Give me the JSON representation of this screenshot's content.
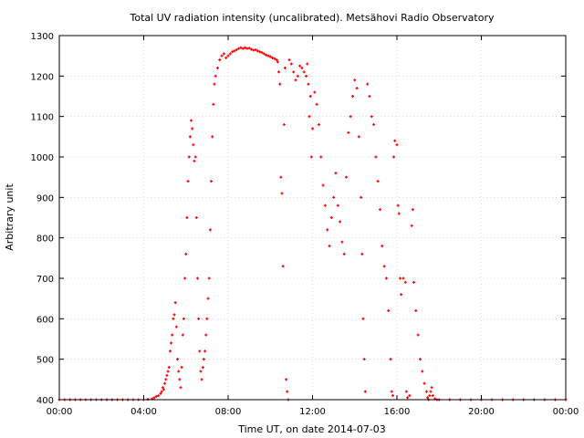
{
  "chart_data": {
    "type": "scatter",
    "title": "Total UV radiation intensity (uncalibrated). Metsähovi Radio Observatory",
    "xlabel": "Time UT, on date 2014-07-03",
    "ylabel": "Arbitrary unit",
    "xlim": [
      0,
      24
    ],
    "ylim": [
      400,
      1300
    ],
    "x_ticks": [
      0,
      4,
      8,
      12,
      16,
      20,
      24
    ],
    "x_tick_labels": [
      "00:00",
      "04:00",
      "08:00",
      "12:00",
      "16:00",
      "20:00",
      "00:00"
    ],
    "y_ticks": [
      400,
      500,
      600,
      700,
      800,
      900,
      1000,
      1100,
      1200,
      1300
    ],
    "grid": true,
    "point_color": "#ff0000",
    "x_unit": "hours UT",
    "series": [
      {
        "points": [
          [
            0.0,
            400
          ],
          [
            0.25,
            400
          ],
          [
            0.5,
            400
          ],
          [
            0.75,
            400
          ],
          [
            1.0,
            400
          ],
          [
            1.25,
            400
          ],
          [
            1.5,
            400
          ],
          [
            1.75,
            400
          ],
          [
            2.0,
            400
          ],
          [
            2.25,
            400
          ],
          [
            2.5,
            400
          ],
          [
            2.75,
            400
          ],
          [
            3.0,
            400
          ],
          [
            3.25,
            400
          ],
          [
            3.5,
            400
          ],
          [
            3.75,
            400
          ],
          [
            4.0,
            400
          ],
          [
            4.2,
            401
          ],
          [
            4.4,
            402
          ],
          [
            4.5,
            405
          ],
          [
            4.6,
            408
          ],
          [
            4.7,
            410
          ],
          [
            4.8,
            415
          ],
          [
            4.85,
            420
          ],
          [
            4.9,
            430
          ],
          [
            4.95,
            425
          ],
          [
            5.0,
            440
          ],
          [
            5.05,
            450
          ],
          [
            5.1,
            460
          ],
          [
            5.15,
            470
          ],
          [
            5.2,
            480
          ],
          [
            5.25,
            520
          ],
          [
            5.3,
            540
          ],
          [
            5.35,
            560
          ],
          [
            5.4,
            600
          ],
          [
            5.45,
            610
          ],
          [
            5.5,
            640
          ],
          [
            5.55,
            580
          ],
          [
            5.6,
            500
          ],
          [
            5.65,
            470
          ],
          [
            5.7,
            450
          ],
          [
            5.75,
            430
          ],
          [
            5.8,
            480
          ],
          [
            5.85,
            560
          ],
          [
            5.9,
            600
          ],
          [
            5.95,
            700
          ],
          [
            6.0,
            760
          ],
          [
            6.05,
            850
          ],
          [
            6.1,
            940
          ],
          [
            6.15,
            1000
          ],
          [
            6.2,
            1050
          ],
          [
            6.25,
            1090
          ],
          [
            6.3,
            1070
          ],
          [
            6.35,
            1030
          ],
          [
            6.4,
            990
          ],
          [
            6.45,
            1000
          ],
          [
            6.5,
            850
          ],
          [
            6.55,
            700
          ],
          [
            6.6,
            600
          ],
          [
            6.65,
            520
          ],
          [
            6.7,
            470
          ],
          [
            6.75,
            450
          ],
          [
            6.8,
            480
          ],
          [
            6.85,
            500
          ],
          [
            6.9,
            520
          ],
          [
            6.95,
            560
          ],
          [
            7.0,
            600
          ],
          [
            7.05,
            650
          ],
          [
            7.1,
            700
          ],
          [
            7.15,
            820
          ],
          [
            7.2,
            940
          ],
          [
            7.25,
            1050
          ],
          [
            7.3,
            1130
          ],
          [
            7.35,
            1180
          ],
          [
            7.4,
            1200
          ],
          [
            7.5,
            1220
          ],
          [
            7.6,
            1240
          ],
          [
            7.7,
            1250
          ],
          [
            7.8,
            1255
          ],
          [
            7.9,
            1245
          ],
          [
            8.0,
            1250
          ],
          [
            8.1,
            1255
          ],
          [
            8.2,
            1260
          ],
          [
            8.3,
            1262
          ],
          [
            8.4,
            1265
          ],
          [
            8.5,
            1268
          ],
          [
            8.6,
            1270
          ],
          [
            8.7,
            1268
          ],
          [
            8.8,
            1270
          ],
          [
            8.9,
            1268
          ],
          [
            9.0,
            1269
          ],
          [
            9.1,
            1266
          ],
          [
            9.2,
            1264
          ],
          [
            9.3,
            1265
          ],
          [
            9.4,
            1262
          ],
          [
            9.5,
            1260
          ],
          [
            9.6,
            1258
          ],
          [
            9.7,
            1255
          ],
          [
            9.8,
            1252
          ],
          [
            9.9,
            1250
          ],
          [
            10.0,
            1248
          ],
          [
            10.1,
            1245
          ],
          [
            10.2,
            1243
          ],
          [
            10.3,
            1240
          ],
          [
            10.35,
            1235
          ],
          [
            10.4,
            1210
          ],
          [
            10.45,
            1180
          ],
          [
            10.5,
            950
          ],
          [
            10.55,
            910
          ],
          [
            10.6,
            730
          ],
          [
            10.65,
            1080
          ],
          [
            10.7,
            1220
          ],
          [
            10.75,
            450
          ],
          [
            10.8,
            420
          ],
          [
            10.85,
            400
          ],
          [
            10.9,
            1240
          ],
          [
            11.0,
            1230
          ],
          [
            11.1,
            1210
          ],
          [
            11.2,
            1190
          ],
          [
            11.3,
            1200
          ],
          [
            11.4,
            1225
          ],
          [
            11.5,
            1220
          ],
          [
            11.6,
            1210
          ],
          [
            11.7,
            1200
          ],
          [
            11.75,
            1230
          ],
          [
            11.8,
            1180
          ],
          [
            11.85,
            1100
          ],
          [
            11.9,
            1150
          ],
          [
            11.95,
            1000
          ],
          [
            12.0,
            1070
          ],
          [
            12.1,
            1160
          ],
          [
            12.2,
            1130
          ],
          [
            12.3,
            1080
          ],
          [
            12.4,
            1000
          ],
          [
            12.5,
            930
          ],
          [
            12.6,
            880
          ],
          [
            12.7,
            820
          ],
          [
            12.8,
            780
          ],
          [
            12.9,
            850
          ],
          [
            13.0,
            900
          ],
          [
            13.1,
            960
          ],
          [
            13.2,
            880
          ],
          [
            13.3,
            840
          ],
          [
            13.4,
            790
          ],
          [
            13.5,
            760
          ],
          [
            13.6,
            950
          ],
          [
            13.7,
            1060
          ],
          [
            13.8,
            1100
          ],
          [
            13.9,
            1150
          ],
          [
            14.0,
            1190
          ],
          [
            14.1,
            1170
          ],
          [
            14.2,
            1050
          ],
          [
            14.3,
            900
          ],
          [
            14.35,
            760
          ],
          [
            14.4,
            600
          ],
          [
            14.45,
            500
          ],
          [
            14.5,
            420
          ],
          [
            14.6,
            1180
          ],
          [
            14.7,
            1150
          ],
          [
            14.8,
            1100
          ],
          [
            14.9,
            1080
          ],
          [
            15.0,
            1000
          ],
          [
            15.1,
            940
          ],
          [
            15.2,
            870
          ],
          [
            15.3,
            780
          ],
          [
            15.4,
            730
          ],
          [
            15.5,
            700
          ],
          [
            15.6,
            620
          ],
          [
            15.7,
            500
          ],
          [
            15.75,
            420
          ],
          [
            15.8,
            410
          ],
          [
            15.85,
            1000
          ],
          [
            15.9,
            1040
          ],
          [
            16.0,
            1030
          ],
          [
            16.05,
            880
          ],
          [
            16.1,
            860
          ],
          [
            16.15,
            700
          ],
          [
            16.2,
            660
          ],
          [
            16.3,
            700
          ],
          [
            16.4,
            690
          ],
          [
            16.45,
            420
          ],
          [
            16.5,
            405
          ],
          [
            16.6,
            410
          ],
          [
            16.7,
            830
          ],
          [
            16.75,
            870
          ],
          [
            16.8,
            690
          ],
          [
            16.9,
            620
          ],
          [
            17.0,
            560
          ],
          [
            17.1,
            500
          ],
          [
            17.2,
            470
          ],
          [
            17.3,
            440
          ],
          [
            17.4,
            420
          ],
          [
            17.45,
            405
          ],
          [
            17.5,
            400
          ],
          [
            17.55,
            410
          ],
          [
            17.6,
            420
          ],
          [
            17.65,
            430
          ],
          [
            17.7,
            410
          ],
          [
            17.8,
            402
          ],
          [
            17.9,
            400
          ],
          [
            18.0,
            400
          ],
          [
            18.5,
            400
          ],
          [
            19.0,
            400
          ],
          [
            19.5,
            400
          ],
          [
            20.0,
            400
          ],
          [
            20.5,
            400
          ],
          [
            21.0,
            400
          ],
          [
            21.5,
            400
          ],
          [
            22.0,
            400
          ],
          [
            22.5,
            400
          ],
          [
            23.0,
            400
          ],
          [
            23.5,
            400
          ],
          [
            24.0,
            400
          ]
        ]
      }
    ]
  }
}
